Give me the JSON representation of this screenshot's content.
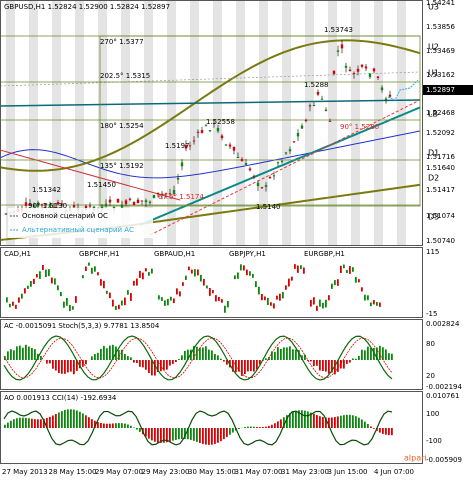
{
  "header": "GBPUSD,H1  1.52824 1.52900 1.52824 1.52897",
  "price_axis": [
    "1.54241",
    "1.53856",
    "1.53469",
    "1.53162",
    "1.52468",
    "1.52092",
    "1.51716",
    "1.51640",
    "1.51417",
    "1.51074",
    "1.50740"
  ],
  "current_price": "1.52897",
  "levels": [
    "U3",
    "U2",
    "U1",
    "LB",
    "D1",
    "D2",
    "D3"
  ],
  "annotations": [
    "1.53743",
    "270° 1.5377",
    "1.5288",
    "202.5° 1.5315",
    "180° 1.5254",
    "1.52558",
    "1.5197",
    "135° 1.5192",
    "1.51450",
    "1.51342",
    "90° 1.5130",
    "67.5° 1.5174",
    "1.5140",
    "90° 1.5280"
  ],
  "legend": [
    "Основной сценарий ОС",
    "Альтернативный сценарий АС"
  ],
  "panel2": {
    "titles": [
      "CAD,H1",
      "GBPCHF,H1",
      "GBPAUD,H1",
      "GBPJPY,H1",
      "EURGBP,H1"
    ],
    "axis": [
      "115",
      "-15"
    ]
  },
  "panel3": {
    "title": "AC -0.0015091  Stoch(5,3,3) 9.7781 13.8504",
    "axis": [
      "0.002824",
      "80",
      "20",
      "-0.002194"
    ]
  },
  "panel4": {
    "title": "AO 0.001913  CCI(14) -192.6934",
    "axis": [
      "0.010761",
      "100",
      "-100",
      "-0.005909"
    ]
  },
  "time_axis": [
    "27 May 2013",
    "28 May 15:00",
    "29 May 07:00",
    "29 May 23:00",
    "30 May 15:00",
    "31 May 07:00",
    "31 May 23:00",
    "3 Jun 15:00",
    "4 Jun 07:00"
  ],
  "logo": "alpari"
}
